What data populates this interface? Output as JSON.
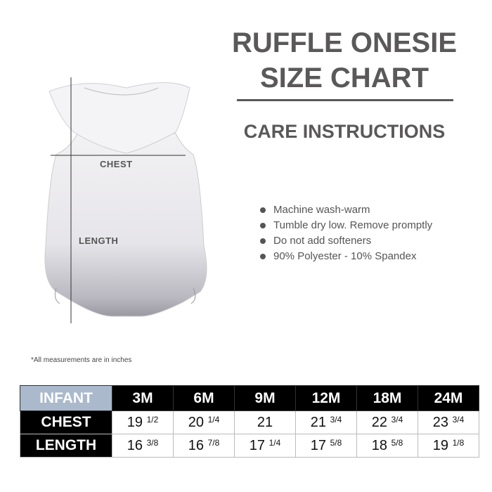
{
  "title_line1": "RUFFLE ONESIE",
  "title_line2": "SIZE CHART",
  "care_heading": "CARE INSTRUCTIONS",
  "care_items": [
    "Machine wash-warm",
    "Tumble dry low. Remove promptly",
    "Do not add softeners",
    "90% Polyester - 10% Spandex"
  ],
  "garment": {
    "chest_label": "CHEST",
    "length_label": "LENGTH"
  },
  "note": "*All measurements are in inches",
  "table": {
    "corner": "INFANT",
    "sizes": [
      "3M",
      "6M",
      "9M",
      "12M",
      "18M",
      "24M"
    ],
    "rows": [
      {
        "label": "CHEST",
        "values": [
          [
            "19",
            "1/2"
          ],
          [
            "20",
            "1/4"
          ],
          [
            "21",
            ""
          ],
          [
            "21",
            "3/4"
          ],
          [
            "22",
            "3/4"
          ],
          [
            "23",
            "3/4"
          ]
        ]
      },
      {
        "label": "LENGTH",
        "values": [
          [
            "16",
            "3/8"
          ],
          [
            "16",
            "7/8"
          ],
          [
            "17",
            "1/4"
          ],
          [
            "17",
            "5/8"
          ],
          [
            "18",
            "5/8"
          ],
          [
            "19",
            "1/8"
          ]
        ]
      }
    ]
  },
  "colors": {
    "title": "#5a5858",
    "corner": "#aab9cc",
    "header": "#000000"
  }
}
